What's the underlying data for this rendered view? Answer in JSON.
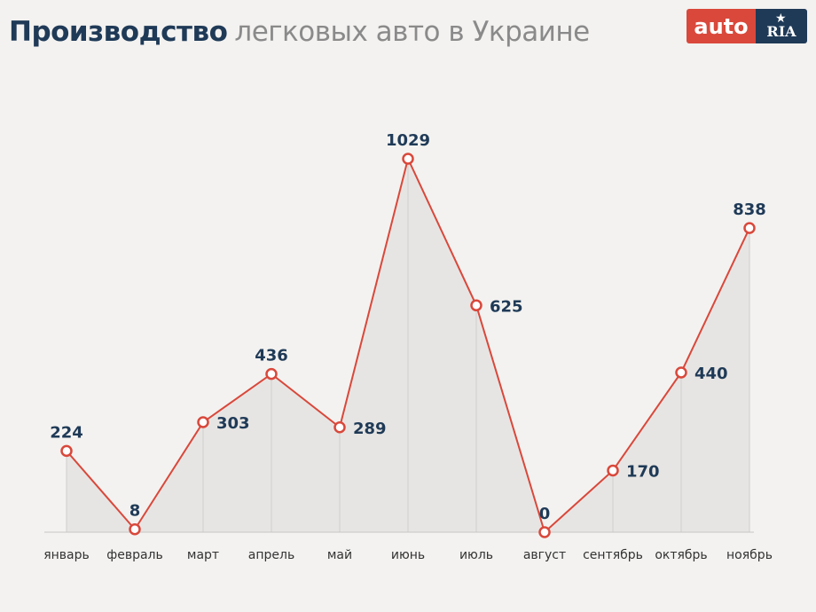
{
  "header": {
    "title_bold": "Производство",
    "title_light": "легковых авто в Украине"
  },
  "logo": {
    "auto": "auto",
    "ria": "RIA",
    "star_icon": "star-icon"
  },
  "chart_data": {
    "type": "area",
    "categories": [
      "январь",
      "февраль",
      "март",
      "апрель",
      "май",
      "июнь",
      "июль",
      "август",
      "сентябрь",
      "октябрь",
      "ноябрь"
    ],
    "series": [
      {
        "values": [
          224,
          8,
          303,
          436,
          289,
          1029,
          625,
          0,
          170,
          440,
          838
        ]
      }
    ],
    "ylim": [
      0,
      1029
    ],
    "grid": false,
    "colors": {
      "line": "#d9483b",
      "area": "#e4e3e1",
      "label": "#1f3a57"
    }
  }
}
